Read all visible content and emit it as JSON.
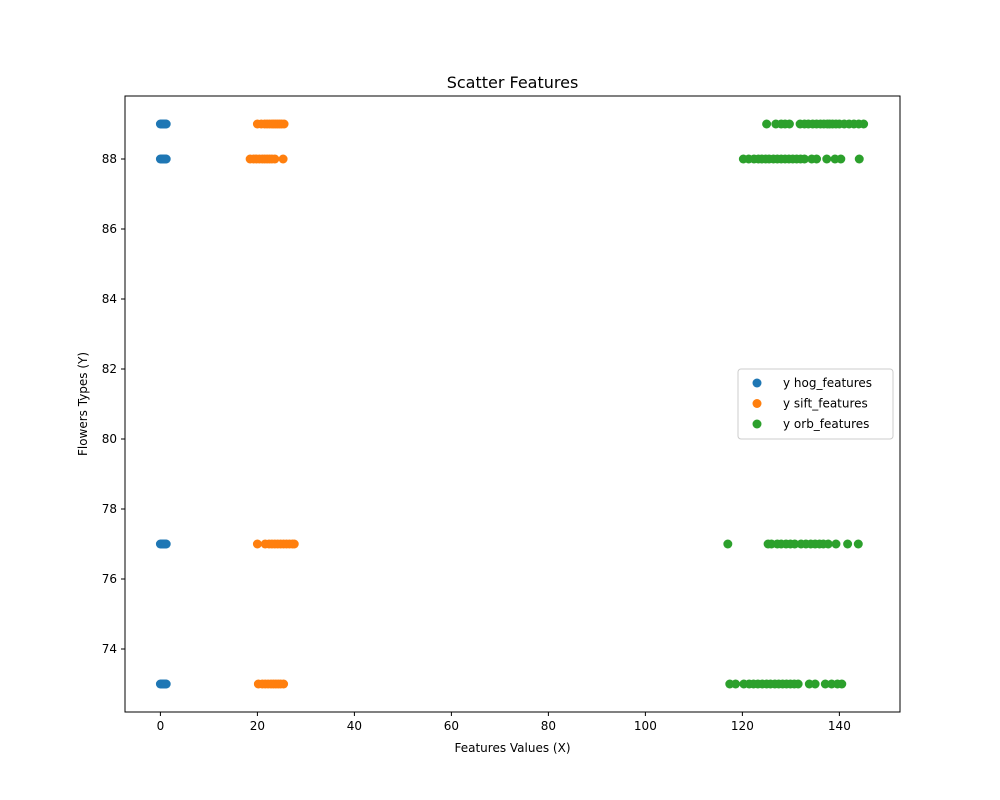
{
  "chart_data": {
    "type": "scatter",
    "title": "Scatter Features",
    "xlabel": "Features Values (X)",
    "ylabel": "Flowers Types (Y)",
    "xlim": [
      -7.3,
      152.5
    ],
    "ylim": [
      72.2,
      89.8
    ],
    "xticks": [
      0,
      20,
      40,
      60,
      80,
      100,
      120,
      140
    ],
    "yticks": [
      74,
      76,
      78,
      80,
      82,
      84,
      86,
      88
    ],
    "grid": false,
    "legend_position": "center-right",
    "series": [
      {
        "name": "y hog_features",
        "color": "#1f77b4",
        "points": [
          [
            0.0,
            89
          ],
          [
            0.2,
            89
          ],
          [
            0.4,
            89
          ],
          [
            0.6,
            89
          ],
          [
            0.8,
            89
          ],
          [
            1.0,
            89
          ],
          [
            1.2,
            89
          ],
          [
            0.0,
            88
          ],
          [
            0.2,
            88
          ],
          [
            0.4,
            88
          ],
          [
            0.6,
            88
          ],
          [
            0.8,
            88
          ],
          [
            1.0,
            88
          ],
          [
            1.2,
            88
          ],
          [
            0.0,
            77
          ],
          [
            0.2,
            77
          ],
          [
            0.4,
            77
          ],
          [
            0.6,
            77
          ],
          [
            0.8,
            77
          ],
          [
            1.0,
            77
          ],
          [
            1.2,
            77
          ],
          [
            0.0,
            73
          ],
          [
            0.2,
            73
          ],
          [
            0.4,
            73
          ],
          [
            0.6,
            73
          ],
          [
            0.8,
            73
          ],
          [
            1.0,
            73
          ],
          [
            1.2,
            73
          ]
        ]
      },
      {
        "name": "y sift_features",
        "color": "#ff7f0e",
        "points": [
          [
            20.0,
            89
          ],
          [
            20.8,
            89
          ],
          [
            21.5,
            89
          ],
          [
            22.0,
            89
          ],
          [
            22.5,
            89
          ],
          [
            23.0,
            89
          ],
          [
            23.4,
            89
          ],
          [
            23.8,
            89
          ],
          [
            24.2,
            89
          ],
          [
            24.6,
            89
          ],
          [
            25.0,
            89
          ],
          [
            25.5,
            89
          ],
          [
            18.5,
            88
          ],
          [
            19.2,
            88
          ],
          [
            19.8,
            88
          ],
          [
            20.4,
            88
          ],
          [
            21.0,
            88
          ],
          [
            21.5,
            88
          ],
          [
            22.0,
            88
          ],
          [
            22.5,
            88
          ],
          [
            23.0,
            88
          ],
          [
            23.6,
            88
          ],
          [
            25.3,
            88
          ],
          [
            20.0,
            77
          ],
          [
            21.6,
            77
          ],
          [
            22.4,
            77
          ],
          [
            23.0,
            77
          ],
          [
            23.6,
            77
          ],
          [
            24.2,
            77
          ],
          [
            24.8,
            77
          ],
          [
            25.4,
            77
          ],
          [
            26.0,
            77
          ],
          [
            26.6,
            77
          ],
          [
            27.2,
            77
          ],
          [
            27.6,
            77
          ],
          [
            20.2,
            73
          ],
          [
            21.0,
            73
          ],
          [
            21.6,
            73
          ],
          [
            22.2,
            73
          ],
          [
            22.8,
            73
          ],
          [
            23.3,
            73
          ],
          [
            23.8,
            73
          ],
          [
            24.3,
            73
          ],
          [
            24.8,
            73
          ],
          [
            25.4,
            73
          ]
        ]
      },
      {
        "name": "y orb_features",
        "color": "#2ca02c",
        "points": [
          [
            125.0,
            89
          ],
          [
            126.9,
            89
          ],
          [
            128.0,
            89
          ],
          [
            128.8,
            89
          ],
          [
            129.7,
            89
          ],
          [
            131.9,
            89
          ],
          [
            132.8,
            89
          ],
          [
            133.6,
            89
          ],
          [
            134.5,
            89
          ],
          [
            135.3,
            89
          ],
          [
            136.1,
            89
          ],
          [
            136.8,
            89
          ],
          [
            137.5,
            89
          ],
          [
            138.0,
            89
          ],
          [
            138.6,
            89
          ],
          [
            139.3,
            89
          ],
          [
            140.0,
            89
          ],
          [
            141.0,
            89
          ],
          [
            142.0,
            89
          ],
          [
            143.0,
            89
          ],
          [
            144.0,
            89
          ],
          [
            145.0,
            89
          ],
          [
            120.2,
            88
          ],
          [
            121.3,
            88
          ],
          [
            122.4,
            88
          ],
          [
            123.3,
            88
          ],
          [
            124.0,
            88
          ],
          [
            124.8,
            88
          ],
          [
            125.5,
            88
          ],
          [
            126.4,
            88
          ],
          [
            127.2,
            88
          ],
          [
            128.0,
            88
          ],
          [
            128.8,
            88
          ],
          [
            129.6,
            88
          ],
          [
            130.4,
            88
          ],
          [
            131.2,
            88
          ],
          [
            132.0,
            88
          ],
          [
            132.8,
            88
          ],
          [
            134.3,
            88
          ],
          [
            135.3,
            88
          ],
          [
            137.4,
            88
          ],
          [
            139.1,
            88
          ],
          [
            140.3,
            88
          ],
          [
            144.1,
            88
          ],
          [
            117.0,
            77
          ],
          [
            125.3,
            77
          ],
          [
            126.0,
            77
          ],
          [
            127.2,
            77
          ],
          [
            128.0,
            77
          ],
          [
            129.0,
            77
          ],
          [
            129.9,
            77
          ],
          [
            130.8,
            77
          ],
          [
            132.1,
            77
          ],
          [
            133.1,
            77
          ],
          [
            134.1,
            77
          ],
          [
            135.0,
            77
          ],
          [
            135.9,
            77
          ],
          [
            136.7,
            77
          ],
          [
            137.7,
            77
          ],
          [
            139.3,
            77
          ],
          [
            141.7,
            77
          ],
          [
            143.9,
            77
          ],
          [
            117.4,
            73
          ],
          [
            118.6,
            73
          ],
          [
            120.3,
            73
          ],
          [
            121.4,
            73
          ],
          [
            122.3,
            73
          ],
          [
            123.2,
            73
          ],
          [
            124.1,
            73
          ],
          [
            125.0,
            73
          ],
          [
            125.8,
            73
          ],
          [
            126.7,
            73
          ],
          [
            127.5,
            73
          ],
          [
            128.3,
            73
          ],
          [
            129.1,
            73
          ],
          [
            129.9,
            73
          ],
          [
            130.7,
            73
          ],
          [
            131.5,
            73
          ],
          [
            133.8,
            73
          ],
          [
            135.0,
            73
          ],
          [
            137.1,
            73
          ],
          [
            138.4,
            73
          ],
          [
            139.6,
            73
          ],
          [
            140.5,
            73
          ]
        ]
      }
    ]
  }
}
